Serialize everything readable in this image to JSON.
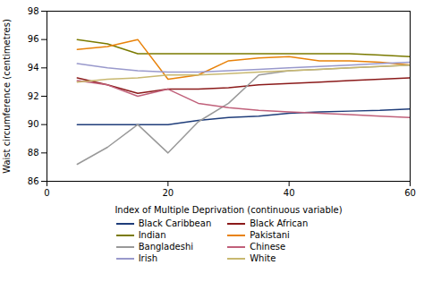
{
  "chart_data": {
    "type": "line",
    "xlabel": "Index of Multiple Deprivation (continuous variable)",
    "ylabel": "Waist circumference (centimetres)",
    "x": [
      5,
      10,
      15,
      20,
      25,
      30,
      35,
      40,
      45,
      50,
      55,
      60
    ],
    "series": [
      {
        "name": "Black Caribbean",
        "color": "#1f3d7a",
        "values": [
          90.0,
          90.0,
          90.0,
          90.0,
          90.3,
          90.5,
          90.6,
          90.8,
          90.9,
          90.95,
          91.0,
          91.1
        ]
      },
      {
        "name": "Black African",
        "color": "#8b1a1a",
        "values": [
          93.3,
          92.8,
          92.2,
          92.5,
          92.5,
          92.6,
          92.8,
          92.9,
          93.0,
          93.1,
          93.2,
          93.3
        ]
      },
      {
        "name": "Indian",
        "color": "#7a7a00",
        "values": [
          96.0,
          95.7,
          95.0,
          95.0,
          95.0,
          95.0,
          95.0,
          95.0,
          95.0,
          95.0,
          94.9,
          94.8
        ]
      },
      {
        "name": "Pakistani",
        "color": "#e8820a",
        "values": [
          95.3,
          95.5,
          96.0,
          93.2,
          93.5,
          94.5,
          94.7,
          94.8,
          94.5,
          94.5,
          94.4,
          94.2
        ]
      },
      {
        "name": "Bangladeshi",
        "color": "#999999",
        "values": [
          87.2,
          88.4,
          90.0,
          88.0,
          90.2,
          91.5,
          93.5,
          93.8,
          93.9,
          94.0,
          94.1,
          94.2
        ]
      },
      {
        "name": "Chinese",
        "color": "#c0607a",
        "values": [
          93.1,
          92.8,
          92.0,
          92.5,
          91.5,
          91.2,
          91.0,
          90.9,
          90.8,
          90.7,
          90.6,
          90.5
        ]
      },
      {
        "name": "Irish",
        "color": "#9999cc",
        "values": [
          94.3,
          94.0,
          93.8,
          93.7,
          93.7,
          93.8,
          93.9,
          94.0,
          94.1,
          94.2,
          94.3,
          94.4
        ]
      },
      {
        "name": "White",
        "color": "#c8b870",
        "values": [
          93.0,
          93.2,
          93.3,
          93.5,
          93.5,
          93.6,
          93.7,
          93.8,
          93.9,
          94.0,
          94.1,
          94.2
        ]
      }
    ],
    "xlim": [
      0,
      60
    ],
    "ylim": [
      86,
      98
    ],
    "xticks": [
      0,
      20,
      40,
      60
    ],
    "yticks": [
      86,
      88,
      90,
      92,
      94,
      96,
      98
    ],
    "grid": false,
    "legend": "bottom"
  }
}
